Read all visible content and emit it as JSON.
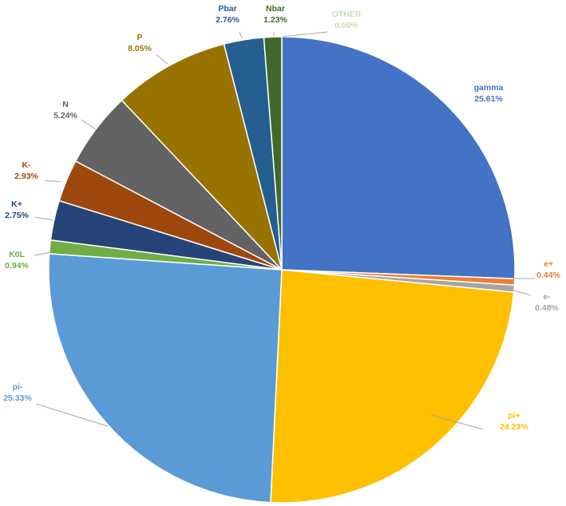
{
  "chart_data": {
    "type": "pie",
    "slices": [
      {
        "name": "gamma",
        "pct_label": "25.61%",
        "value": 25.61,
        "color": "#4472C4"
      },
      {
        "name": "e+",
        "pct_label": "0.44%",
        "value": 0.44,
        "color": "#ED7D31"
      },
      {
        "name": "e-",
        "pct_label": "0.48%",
        "value": 0.48,
        "color": "#A5A5A5"
      },
      {
        "name": "pi+",
        "pct_label": "24.23%",
        "value": 24.23,
        "color": "#FFC000"
      },
      {
        "name": "pi-",
        "pct_label": "25.33%",
        "value": 25.33,
        "color": "#5B9BD5"
      },
      {
        "name": "K0L",
        "pct_label": "0.94%",
        "value": 0.94,
        "color": "#70AD47"
      },
      {
        "name": "K+",
        "pct_label": "2.75%",
        "value": 2.75,
        "color": "#264478"
      },
      {
        "name": "K-",
        "pct_label": "2.93%",
        "value": 2.93,
        "color": "#9E480E"
      },
      {
        "name": "N",
        "pct_label": "5.24%",
        "value": 5.24,
        "color": "#636363"
      },
      {
        "name": "P",
        "pct_label": "8.05%",
        "value": 8.05,
        "color": "#997300"
      },
      {
        "name": "Pbar",
        "pct_label": "2.76%",
        "value": 2.76,
        "color": "#255E91"
      },
      {
        "name": "Nbar",
        "pct_label": "1.23%",
        "value": 1.23,
        "color": "#43682B"
      },
      {
        "name": "OTHER",
        "pct_label": "0.00%",
        "value": 0.0,
        "color": "#A9D18E"
      }
    ],
    "label_colors": {
      "gamma": "#4472C4",
      "e+": "#ED7D31",
      "e-": "#A5A5A5",
      "pi+": "#FFC000",
      "pi-": "#5B9BD5",
      "K0L": "#70AD47",
      "K+": "#264478",
      "K-": "#9E480E",
      "N": "#636363",
      "P": "#997300",
      "Pbar": "#255E91",
      "Nbar": "#43682B",
      "OTHER": "#C5E0B4"
    },
    "start_angle": "12 o'clock",
    "direction": "clockwise",
    "legend": "none",
    "data_labels": "category name and percentage"
  }
}
